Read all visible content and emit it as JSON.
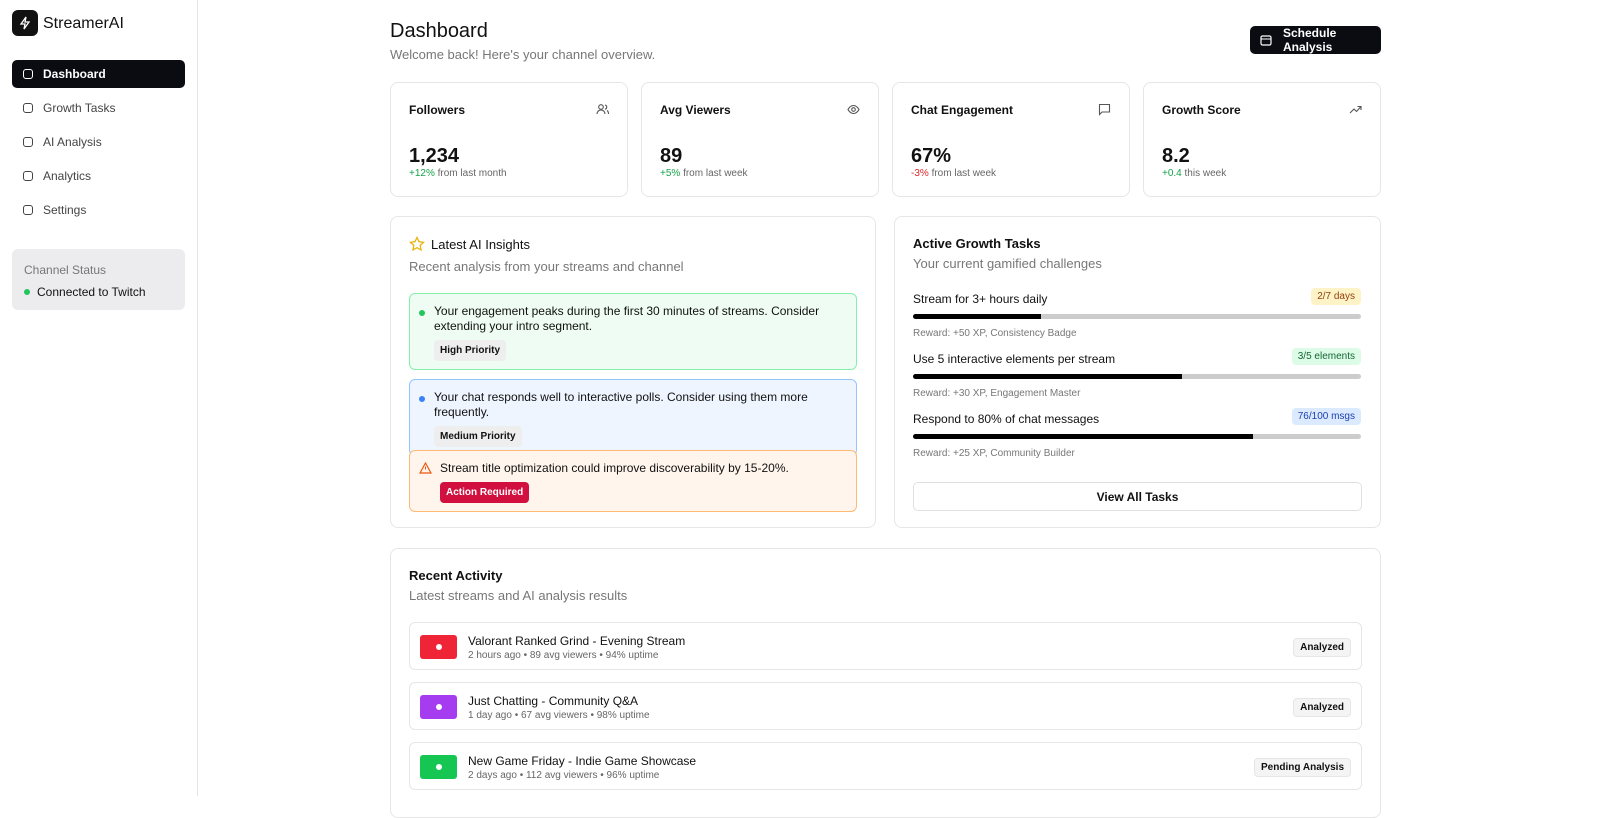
{
  "sidebar": {
    "brand": "StreamerAI",
    "nav": [
      "Dashboard",
      "Growth Tasks",
      "AI Analysis",
      "Analytics",
      "Settings"
    ],
    "status": {
      "title": "Channel Status",
      "text": "Connected to Twitch"
    }
  },
  "header": {
    "title": "Dashboard",
    "subtitle": "Welcome back! Here's your channel overview.",
    "button": "Schedule Analysis"
  },
  "stats": [
    {
      "label": "Followers",
      "value": "1,234",
      "change": "+12%",
      "period": "from last month"
    },
    {
      "label": "Avg Viewers",
      "value": "89",
      "change": "+5%",
      "period": "from last week"
    },
    {
      "label": "Chat Engagement",
      "value": "67%",
      "change": "-3%",
      "period": "from last week"
    },
    {
      "label": "Growth Score",
      "value": "8.2",
      "change": "+0.4",
      "period": "this week"
    }
  ],
  "insights": {
    "title": "Latest AI Insights",
    "subtitle": "Recent analysis from your streams and channel",
    "items": [
      {
        "text": "Your engagement peaks during the first 30 minutes of streams. Consider extending your intro segment.",
        "badge": "High Priority"
      },
      {
        "text": "Your chat responds well to interactive polls. Consider using them more frequently.",
        "badge": "Medium Priority"
      },
      {
        "text": "Stream title optimization could improve discoverability by 15-20%.",
        "badge": "Action Required"
      }
    ]
  },
  "tasks": {
    "title": "Active Growth Tasks",
    "subtitle": "Your current gamified challenges",
    "items": [
      {
        "name": "Stream for 3+ hours daily",
        "badge": "2/7 days",
        "progress": 2,
        "goal": 7,
        "reward": "Reward: +50 XP, Consistency Badge"
      },
      {
        "name": "Use 5 interactive elements per stream",
        "badge": "3/5 elements",
        "progress": 3,
        "goal": 5,
        "reward": "Reward: +30 XP, Engagement Master"
      },
      {
        "name": "Respond to 80% of chat messages",
        "badge": "76/100 msgs",
        "progress": 76,
        "goal": 100,
        "reward": "Reward: +25 XP, Community Builder"
      }
    ],
    "button": "View All Tasks"
  },
  "activity": {
    "title": "Recent Activity",
    "subtitle": "Latest streams and AI analysis results",
    "items": [
      {
        "name": "Valorant Ranked Grind - Evening Stream",
        "meta": "2 hours ago • 89 avg viewers • 94% uptime",
        "status": "Analyzed"
      },
      {
        "name": "Just Chatting - Community Q&A",
        "meta": "1 day ago • 67 avg viewers • 98% uptime",
        "status": "Analyzed"
      },
      {
        "name": "New Game Friday - Indie Game Showcase",
        "meta": "2 days ago • 112 avg viewers • 96% uptime",
        "status": "Pending Analysis"
      }
    ]
  }
}
